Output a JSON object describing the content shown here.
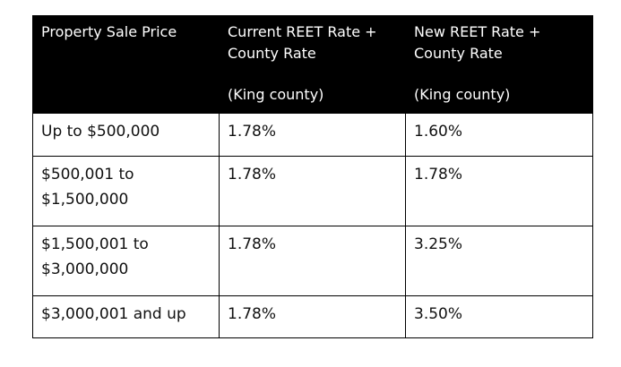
{
  "table": {
    "headers": [
      {
        "line1": "Property Sale Price",
        "line2": ""
      },
      {
        "line1": "Current REET Rate + County Rate",
        "line2": "(King county)"
      },
      {
        "line1": "New REET Rate + County Rate",
        "line2": "(King county)"
      }
    ],
    "rows": [
      {
        "price": "Up to $500,000",
        "current": "1.78%",
        "new": "1.60%"
      },
      {
        "price": "$500,001 to $1,500,000",
        "current": "1.78%",
        "new": "1.78%"
      },
      {
        "price": "$1,500,001 to $3,000,000",
        "current": "1.78%",
        "new": "3.25%"
      },
      {
        "price": "$3,000,001 and up",
        "current": "1.78%",
        "new": "3.50%"
      }
    ]
  },
  "colors": {
    "header_background": "#000000",
    "header_text": "#ffffff",
    "border": "#000000"
  }
}
